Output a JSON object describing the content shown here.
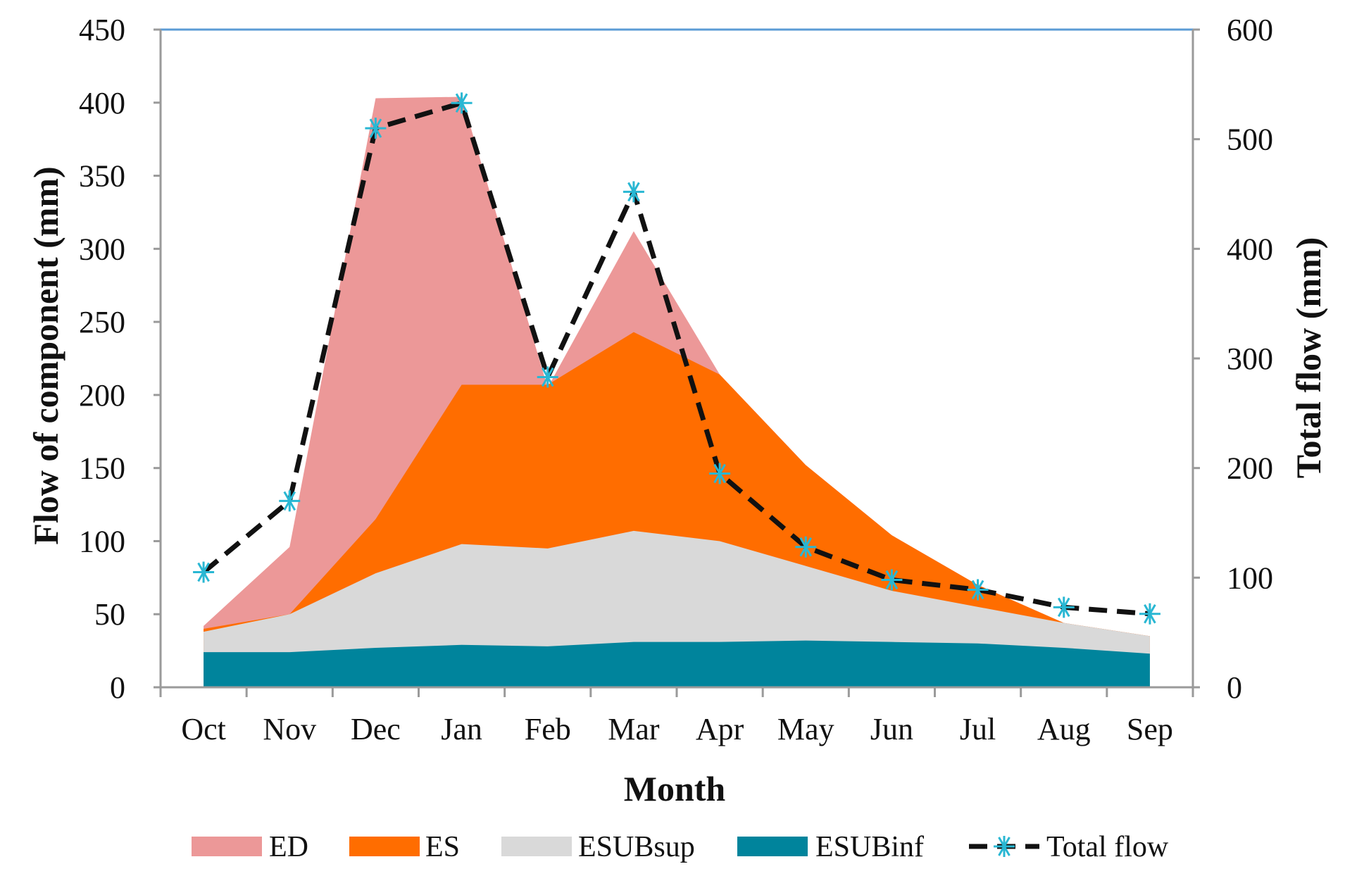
{
  "chart_data": {
    "type": "area",
    "title": "",
    "categories": [
      "Oct",
      "Nov",
      "Dec",
      "Jan",
      "Feb",
      "Mar",
      "Apr",
      "May",
      "Jun",
      "Jul",
      "Aug",
      "Sep"
    ],
    "xlabel": "Month",
    "ylabel": "Flow of component (mm)",
    "y2label": "Total flow (mm)",
    "ylim": [
      0,
      450
    ],
    "y2lim": [
      0,
      600
    ],
    "yticks": [
      0,
      50,
      100,
      150,
      200,
      250,
      300,
      350,
      400,
      450
    ],
    "y2ticks": [
      0,
      100,
      200,
      300,
      400,
      500,
      600
    ],
    "stacking": "overlapping areas (each value is the top of its area)",
    "series": [
      {
        "name": "ED",
        "type": "area",
        "color": "#ec9898",
        "values": [
          42,
          96,
          403,
          404,
          205,
          312,
          214,
          152,
          104,
          70,
          44,
          35
        ]
      },
      {
        "name": "ES",
        "type": "area",
        "color": "#ff6d00",
        "values": [
          40,
          50,
          115,
          207,
          207,
          243,
          214,
          152,
          104,
          70,
          44,
          35
        ]
      },
      {
        "name": "ESUBsup",
        "type": "area",
        "color": "#d9d9d9",
        "values": [
          38,
          50,
          78,
          98,
          95,
          107,
          100,
          83,
          66,
          55,
          44,
          35
        ]
      },
      {
        "name": "ESUBinf",
        "type": "area",
        "color": "#00849c",
        "values": [
          24,
          24,
          27,
          29,
          28,
          31,
          31,
          32,
          31,
          30,
          27,
          23
        ]
      },
      {
        "name": "Total flow",
        "type": "line",
        "axis": "right",
        "color": "#111111",
        "marker_color": "#29b7d3",
        "values": [
          105,
          170,
          510,
          533,
          283,
          452,
          195,
          128,
          98,
          89,
          73,
          67
        ]
      }
    ]
  }
}
